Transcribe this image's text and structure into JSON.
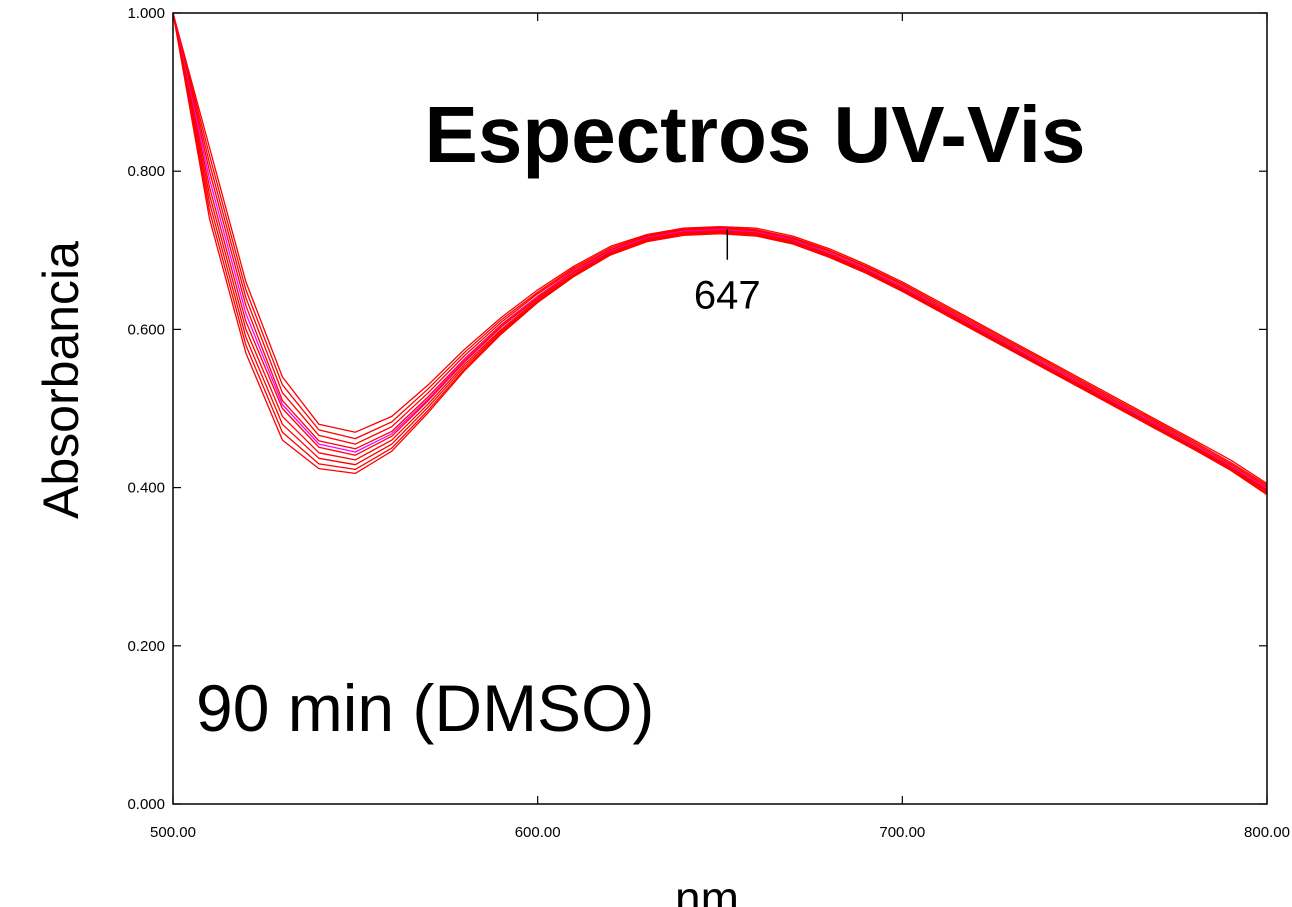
{
  "chart_data": {
    "type": "line",
    "title": "Espectros UV-Vis",
    "xlabel": "nm",
    "ylabel": "Absorbancia",
    "annotation": "90 min (DMSO)",
    "peak_label": "647",
    "peak_x": 652,
    "xlim": [
      500,
      800
    ],
    "ylim": [
      0,
      1
    ],
    "x_ticks": [
      500,
      600,
      700,
      800
    ],
    "x_tick_labels": [
      "500.00",
      "600.00",
      "700.00",
      "800.00"
    ],
    "y_ticks": [
      0,
      0.2,
      0.4,
      0.6,
      0.8,
      1.0
    ],
    "y_tick_labels": [
      "0.000",
      "0.200",
      "0.400",
      "0.600",
      "0.800",
      "1.000"
    ],
    "grid": false,
    "x": [
      500,
      510,
      520,
      530,
      540,
      550,
      560,
      570,
      580,
      590,
      600,
      610,
      620,
      630,
      640,
      650,
      660,
      670,
      680,
      690,
      700,
      710,
      720,
      730,
      740,
      750,
      760,
      770,
      780,
      790,
      800
    ],
    "series": [
      {
        "color": "#ff0000",
        "values": [
          1.0,
          0.83,
          0.66,
          0.54,
          0.48,
          0.47,
          0.49,
          0.53,
          0.575,
          0.615,
          0.65,
          0.68,
          0.705,
          0.72,
          0.728,
          0.73,
          0.728,
          0.718,
          0.702,
          0.682,
          0.66,
          0.635,
          0.61,
          0.585,
          0.56,
          0.535,
          0.51,
          0.485,
          0.46,
          0.435,
          0.405
        ]
      },
      {
        "color": "#ff0000",
        "values": [
          1.0,
          0.82,
          0.65,
          0.53,
          0.473,
          0.462,
          0.483,
          0.525,
          0.571,
          0.612,
          0.647,
          0.678,
          0.703,
          0.719,
          0.727,
          0.729,
          0.726,
          0.716,
          0.7,
          0.68,
          0.658,
          0.633,
          0.608,
          0.583,
          0.558,
          0.533,
          0.508,
          0.483,
          0.458,
          0.432,
          0.403
        ]
      },
      {
        "color": "#ff0000",
        "values": [
          1.0,
          0.81,
          0.64,
          0.52,
          0.466,
          0.455,
          0.477,
          0.52,
          0.567,
          0.609,
          0.645,
          0.676,
          0.701,
          0.718,
          0.726,
          0.728,
          0.725,
          0.715,
          0.699,
          0.679,
          0.656,
          0.631,
          0.606,
          0.581,
          0.556,
          0.531,
          0.506,
          0.481,
          0.456,
          0.43,
          0.401
        ]
      },
      {
        "color": "#ff0000",
        "values": [
          1.0,
          0.8,
          0.63,
          0.51,
          0.459,
          0.449,
          0.471,
          0.515,
          0.563,
          0.606,
          0.642,
          0.674,
          0.7,
          0.717,
          0.725,
          0.727,
          0.724,
          0.714,
          0.697,
          0.677,
          0.654,
          0.629,
          0.604,
          0.579,
          0.554,
          0.529,
          0.504,
          0.479,
          0.454,
          0.428,
          0.399
        ]
      },
      {
        "color": "#ff00ff",
        "values": [
          1.0,
          0.79,
          0.62,
          0.505,
          0.455,
          0.445,
          0.468,
          0.512,
          0.561,
          0.604,
          0.641,
          0.673,
          0.699,
          0.716,
          0.724,
          0.726,
          0.723,
          0.713,
          0.696,
          0.676,
          0.653,
          0.628,
          0.603,
          0.578,
          0.553,
          0.528,
          0.503,
          0.478,
          0.453,
          0.427,
          0.398
        ]
      },
      {
        "color": "#ff0000",
        "values": [
          1.0,
          0.78,
          0.61,
          0.5,
          0.451,
          0.441,
          0.465,
          0.51,
          0.559,
          0.603,
          0.64,
          0.672,
          0.698,
          0.715,
          0.723,
          0.725,
          0.722,
          0.712,
          0.695,
          0.675,
          0.652,
          0.627,
          0.602,
          0.577,
          0.552,
          0.527,
          0.502,
          0.477,
          0.452,
          0.426,
          0.397
        ]
      },
      {
        "color": "#ff0000",
        "values": [
          1.0,
          0.77,
          0.6,
          0.49,
          0.444,
          0.435,
          0.46,
          0.506,
          0.556,
          0.6,
          0.638,
          0.67,
          0.697,
          0.714,
          0.722,
          0.724,
          0.721,
          0.711,
          0.694,
          0.674,
          0.651,
          0.626,
          0.601,
          0.576,
          0.551,
          0.526,
          0.501,
          0.476,
          0.451,
          0.425,
          0.396
        ]
      },
      {
        "color": "#ff0000",
        "values": [
          1.0,
          0.76,
          0.59,
          0.48,
          0.437,
          0.429,
          0.455,
          0.502,
          0.553,
          0.598,
          0.636,
          0.669,
          0.696,
          0.713,
          0.721,
          0.723,
          0.72,
          0.71,
          0.693,
          0.673,
          0.65,
          0.625,
          0.6,
          0.575,
          0.55,
          0.525,
          0.5,
          0.475,
          0.45,
          0.424,
          0.395
        ]
      },
      {
        "color": "#ff0000",
        "values": [
          1.0,
          0.75,
          0.58,
          0.47,
          0.43,
          0.423,
          0.45,
          0.498,
          0.55,
          0.596,
          0.635,
          0.668,
          0.695,
          0.712,
          0.72,
          0.722,
          0.719,
          0.709,
          0.692,
          0.672,
          0.649,
          0.624,
          0.599,
          0.574,
          0.549,
          0.524,
          0.499,
          0.474,
          0.449,
          0.423,
          0.393
        ]
      },
      {
        "color": "#ff0000",
        "values": [
          1.0,
          0.74,
          0.57,
          0.46,
          0.424,
          0.418,
          0.446,
          0.495,
          0.548,
          0.594,
          0.634,
          0.667,
          0.694,
          0.711,
          0.719,
          0.721,
          0.718,
          0.708,
          0.691,
          0.671,
          0.648,
          0.623,
          0.598,
          0.573,
          0.548,
          0.523,
          0.498,
          0.473,
          0.448,
          0.422,
          0.391
        ]
      }
    ]
  }
}
